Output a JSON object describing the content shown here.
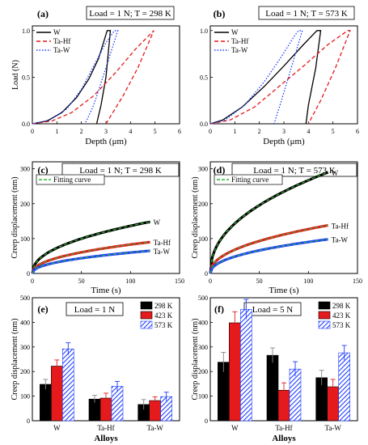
{
  "chart_data": [
    {
      "type": "line",
      "panel_label": "(a)",
      "condition": "Load = 1 N; T = 298 K",
      "xlabel": "Depth (μm)",
      "ylabel": "Load (N)",
      "xlim": [
        0,
        6
      ],
      "ylim": [
        0,
        1.05
      ],
      "xticks": [
        "0",
        "1",
        "2",
        "3",
        "4",
        "5",
        "6"
      ],
      "yticks": [
        "0.0",
        "0.5",
        "1.0"
      ],
      "legend_position": "top-left",
      "series": [
        {
          "name": "W",
          "color": "#000000",
          "dash": "solid",
          "loading": [
            [
              0,
              0
            ],
            [
              0.6,
              0.03
            ],
            [
              1.2,
              0.12
            ],
            [
              1.8,
              0.28
            ],
            [
              2.3,
              0.48
            ],
            [
              2.7,
              0.7
            ],
            [
              3.05,
              1.0
            ]
          ],
          "unloading": [
            [
              3.05,
              1.0
            ],
            [
              3.18,
              1.0
            ],
            [
              3.0,
              0.5
            ],
            [
              2.8,
              0.2
            ],
            [
              2.62,
              0
            ]
          ]
        },
        {
          "name": "Ta-Hf",
          "color": "#e41a1c",
          "dash": "dashed",
          "loading": [
            [
              0,
              0
            ],
            [
              0.8,
              0.03
            ],
            [
              1.6,
              0.12
            ],
            [
              2.5,
              0.3
            ],
            [
              3.4,
              0.55
            ],
            [
              4.2,
              0.8
            ],
            [
              4.95,
              1.0
            ]
          ],
          "unloading": [
            [
              4.95,
              1.0
            ],
            [
              4.3,
              0.6
            ],
            [
              3.7,
              0.3
            ],
            [
              3.0,
              0
            ]
          ]
        },
        {
          "name": "Ta-W",
          "color": "#1f3fff",
          "dash": "dotted",
          "loading": [
            [
              0,
              0
            ],
            [
              0.7,
              0.04
            ],
            [
              1.4,
              0.16
            ],
            [
              2.0,
              0.37
            ],
            [
              2.5,
              0.62
            ],
            [
              3.0,
              0.87
            ],
            [
              3.35,
              1.0
            ]
          ],
          "unloading": [
            [
              3.35,
              1.0
            ],
            [
              3.48,
              1.0
            ],
            [
              3.0,
              0.6
            ],
            [
              2.5,
              0.2
            ],
            [
              2.15,
              0
            ]
          ]
        }
      ]
    },
    {
      "type": "line",
      "panel_label": "(b)",
      "condition": "Load = 1 N; T = 573 K",
      "xlabel": "Depth (μm)",
      "ylabel": "",
      "xlim": [
        0,
        6
      ],
      "ylim": [
        0,
        1.05
      ],
      "xticks": [
        "0",
        "1",
        "2",
        "3",
        "4",
        "5",
        "6"
      ],
      "yticks": [
        "0.0",
        "0.5",
        "1.0"
      ],
      "legend_position": "top-left",
      "series": [
        {
          "name": "W",
          "color": "#000000",
          "dash": "solid",
          "loading": [
            [
              0,
              0
            ],
            [
              0.5,
              0.04
            ],
            [
              1.3,
              0.18
            ],
            [
              2.2,
              0.4
            ],
            [
              3.0,
              0.62
            ],
            [
              3.8,
              0.85
            ],
            [
              4.35,
              1.0
            ]
          ],
          "unloading": [
            [
              4.35,
              1.0
            ],
            [
              4.5,
              1.0
            ],
            [
              4.3,
              0.6
            ],
            [
              4.0,
              0.2
            ],
            [
              3.9,
              0
            ]
          ]
        },
        {
          "name": "Ta-Hf",
          "color": "#e41a1c",
          "dash": "dashed",
          "loading": [
            [
              0,
              0
            ],
            [
              0.8,
              0.04
            ],
            [
              1.8,
              0.18
            ],
            [
              2.8,
              0.4
            ],
            [
              3.8,
              0.62
            ],
            [
              4.8,
              0.85
            ],
            [
              5.6,
              1.0
            ]
          ],
          "unloading": [
            [
              5.6,
              1.0
            ],
            [
              5.7,
              1.0
            ],
            [
              5.1,
              0.6
            ],
            [
              4.5,
              0.25
            ],
            [
              4.0,
              0
            ]
          ]
        },
        {
          "name": "Ta-W",
          "color": "#1f3fff",
          "dash": "dotted",
          "loading": [
            [
              0,
              0
            ],
            [
              0.6,
              0.04
            ],
            [
              1.4,
              0.2
            ],
            [
              2.2,
              0.45
            ],
            [
              2.9,
              0.72
            ],
            [
              3.45,
              0.95
            ],
            [
              3.6,
              1.0
            ]
          ],
          "unloading": [
            [
              3.6,
              1.0
            ],
            [
              3.75,
              1.0
            ],
            [
              3.3,
              0.6
            ],
            [
              2.9,
              0.25
            ],
            [
              2.6,
              0
            ]
          ]
        }
      ]
    },
    {
      "type": "line",
      "panel_label": "(c)",
      "condition": "Load = 1 N; T = 298 K",
      "xlabel": "Time (s)",
      "ylabel": "Creep displacement (nm)",
      "xlim": [
        0,
        150
      ],
      "ylim": [
        0,
        320
      ],
      "xticks": [
        "0",
        "50",
        "100",
        "150"
      ],
      "yticks": [
        "0",
        "100",
        "200",
        "300"
      ],
      "legend": "Fitting curve",
      "fit_color": "#2fb82f",
      "series": [
        {
          "name": "W",
          "color": "#000000",
          "label_color": "#000000",
          "final": 148
        },
        {
          "name": "Ta-Hf",
          "color": "#e41a1c",
          "label_color": "#e41a1c",
          "final": 90
        },
        {
          "name": "Ta-W",
          "color": "#1f3fff",
          "label_color": "#1f3fff",
          "final": 65
        }
      ],
      "curve_end_time": 120
    },
    {
      "type": "line",
      "panel_label": "(d)",
      "condition": "Load = 1 N; T = 573 K",
      "xlabel": "Time (s)",
      "ylabel": "Creep displacement (nm)",
      "xlim": [
        0,
        150
      ],
      "ylim": [
        0,
        320
      ],
      "xticks": [
        "0",
        "50",
        "100",
        "150"
      ],
      "yticks": [
        "0",
        "100",
        "200",
        "300"
      ],
      "legend": "Fitting curve",
      "fit_color": "#2fb82f",
      "series": [
        {
          "name": "W",
          "color": "#000000",
          "label_color": "#000000",
          "final": 290
        },
        {
          "name": "Ta-Hf",
          "color": "#e41a1c",
          "label_color": "#e41a1c",
          "final": 138
        },
        {
          "name": "Ta-W",
          "color": "#1f3fff",
          "label_color": "#1f3fff",
          "final": 98
        }
      ],
      "curve_end_time": 120
    },
    {
      "type": "bar",
      "panel_label": "(e)",
      "condition": "Load = 1 N",
      "xlabel": "Alloys",
      "ylabel": "Creep displacement (nm)",
      "ylim": [
        0,
        500
      ],
      "yticks": [
        "0",
        "100",
        "200",
        "300",
        "400",
        "500"
      ],
      "categories": [
        "W",
        "Ta-Hf",
        "Ta-W"
      ],
      "series": [
        {
          "name": "298 K",
          "color": "#000000",
          "values": [
            148,
            88,
            66
          ],
          "errors": [
            20,
            15,
            20
          ]
        },
        {
          "name": "423 K",
          "color": "#e41a1c",
          "values": [
            222,
            92,
            82
          ],
          "errors": [
            25,
            20,
            15
          ]
        },
        {
          "name": "573 K",
          "color": "#1f3fff",
          "hatch": true,
          "values": [
            292,
            140,
            98
          ],
          "errors": [
            25,
            20,
            18
          ]
        }
      ],
      "legend_position": "top-right"
    },
    {
      "type": "bar",
      "panel_label": "(f)",
      "condition": "Load = 5 N",
      "xlabel": "Alloys",
      "ylabel": "Creep displacement (nm)",
      "ylim": [
        0,
        500
      ],
      "yticks": [
        "0",
        "100",
        "200",
        "300",
        "400",
        "500"
      ],
      "categories": [
        "W",
        "Ta-Hf",
        "Ta-W"
      ],
      "series": [
        {
          "name": "298 K",
          "color": "#000000",
          "values": [
            238,
            266,
            175
          ],
          "errors": [
            40,
            30,
            30
          ]
        },
        {
          "name": "423 K",
          "color": "#e41a1c",
          "values": [
            398,
            124,
            138
          ],
          "errors": [
            45,
            30,
            30
          ]
        },
        {
          "name": "573 K",
          "color": "#1f3fff",
          "hatch": true,
          "values": [
            453,
            210,
            276
          ],
          "errors": [
            40,
            30,
            30
          ]
        }
      ],
      "legend_position": "top-right"
    }
  ]
}
